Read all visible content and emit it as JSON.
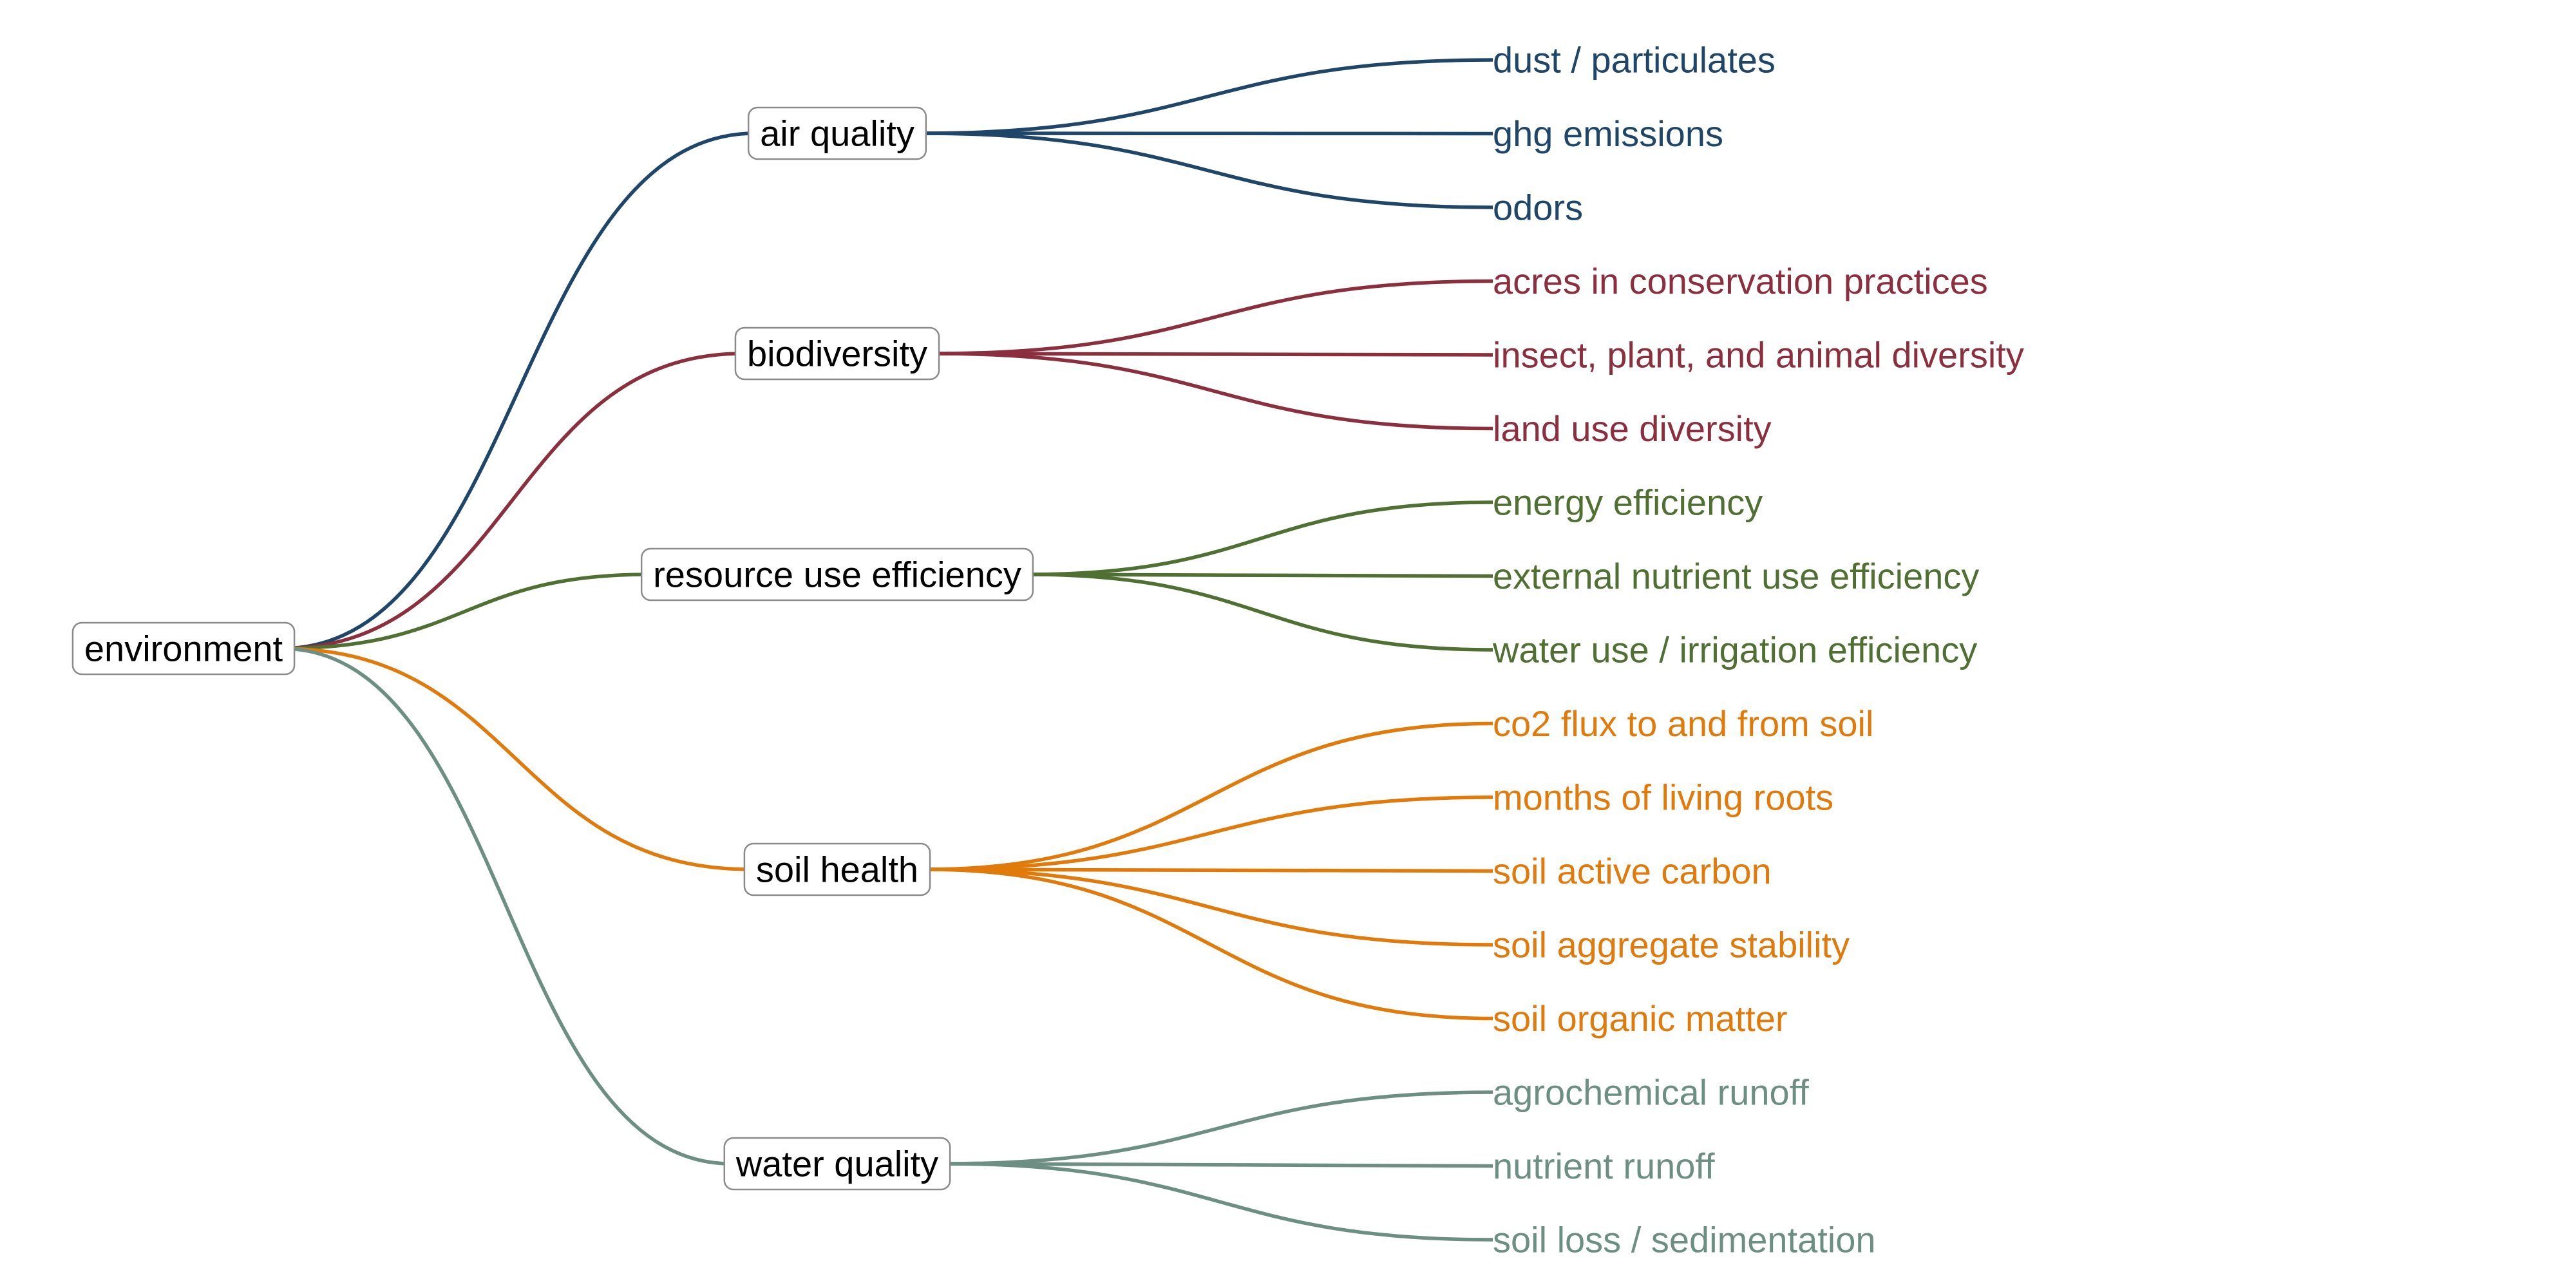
{
  "root": {
    "label": "environment"
  },
  "categories": [
    {
      "label": "air quality",
      "color": "#1f4569",
      "leaves": [
        "dust / particulates",
        "ghg emissions",
        "odors"
      ]
    },
    {
      "label": "biodiversity",
      "color": "#8b2f3f",
      "leaves": [
        "acres in conservation practices",
        "insect, plant, and animal diversity",
        "land use diversity"
      ]
    },
    {
      "label": "resource use efficiency",
      "color": "#4f7032",
      "leaves": [
        "energy efficiency",
        "external nutrient use efficiency",
        "water use / irrigation efficiency"
      ]
    },
    {
      "label": "soil health",
      "color": "#e07a0b",
      "leaves": [
        "co2 flux to and from soil",
        "months of living roots",
        "soil active carbon",
        "soil aggregate stability",
        "soil organic matter"
      ]
    },
    {
      "label": "water quality",
      "color": "#6d8f83",
      "leaves": [
        "agrochemical runoff",
        "nutrient runoff",
        "soil loss / sedimentation"
      ]
    }
  ]
}
